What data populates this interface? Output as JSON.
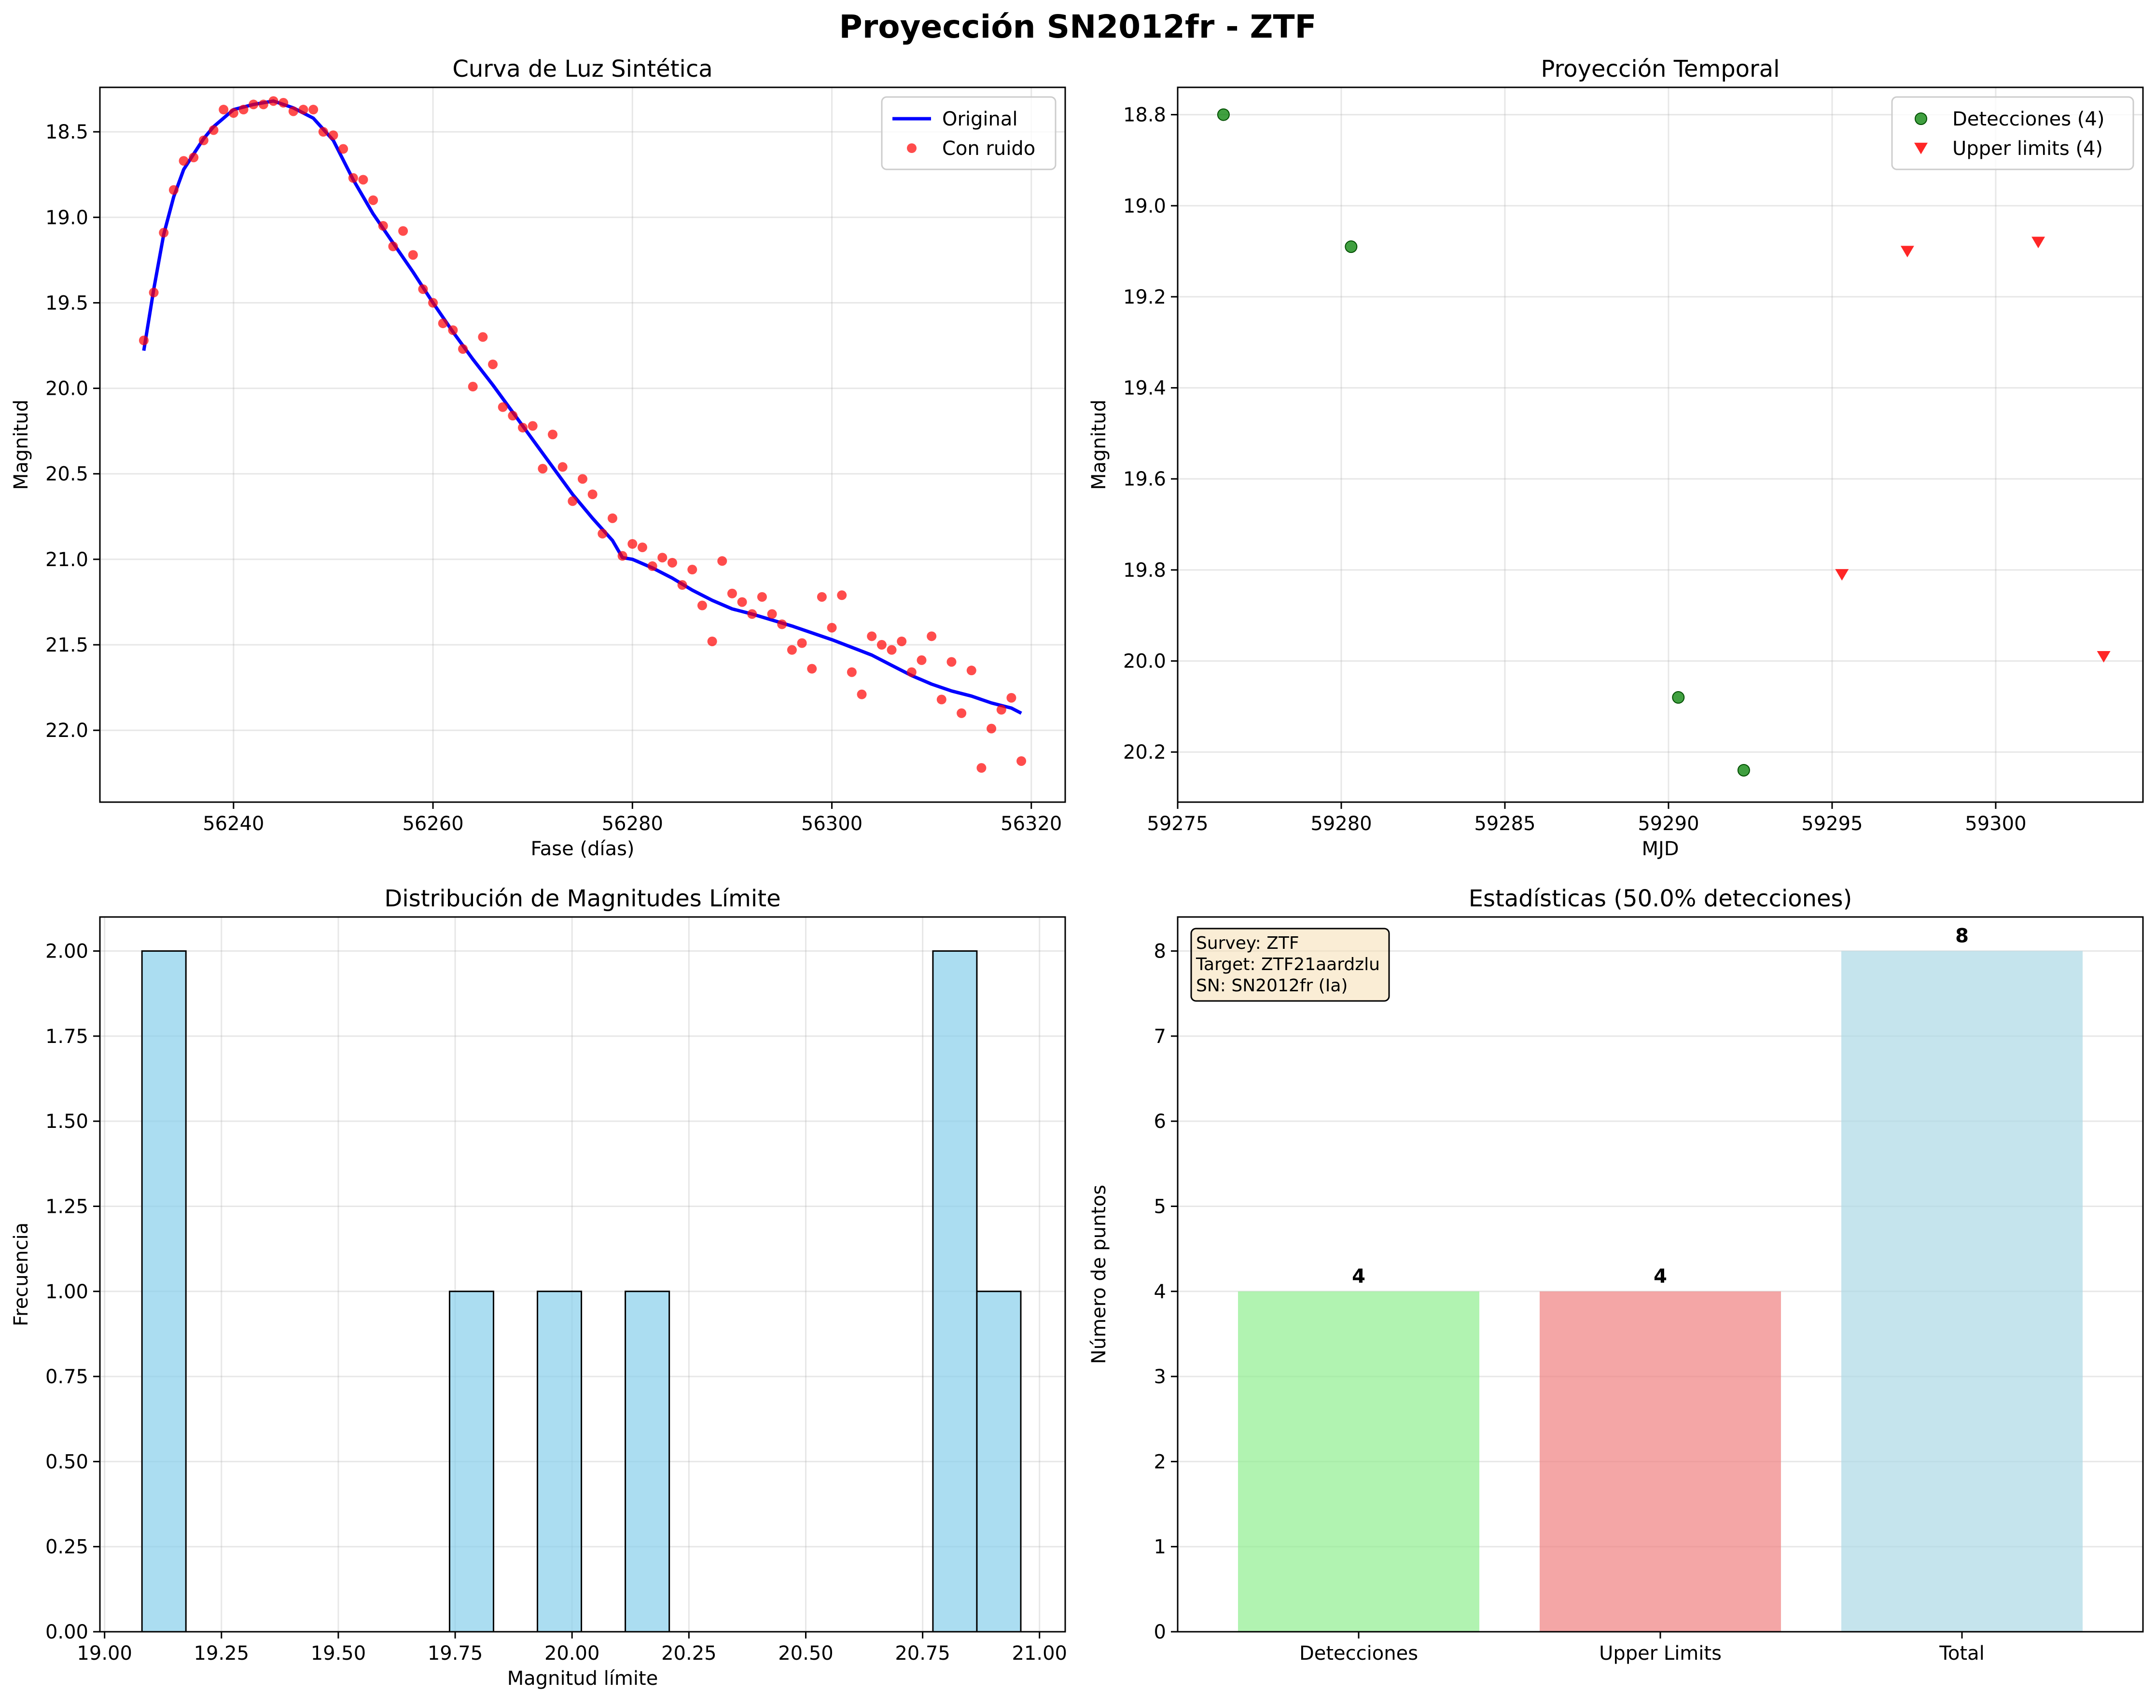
{
  "suptitle": "Proyección SN2012fr - ZTF",
  "chart_data": [
    {
      "type": "line",
      "title": "Curva de Luz Sintética",
      "xlabel": "Fase (días)",
      "ylabel": "Magnitud",
      "xlim": [
        56226.6,
        56323.4
      ],
      "ylim": [
        22.42,
        18.24
      ],
      "y_inverted": true,
      "xticks": [
        56240,
        56260,
        56280,
        56300,
        56320
      ],
      "yticks": [
        18.5,
        19.0,
        19.5,
        20.0,
        20.5,
        21.0,
        21.5,
        22.0
      ],
      "xtick_labels": [
        "56240",
        "56260",
        "56280",
        "56300",
        "56320"
      ],
      "ytick_labels": [
        "18.5",
        "19.0",
        "19.5",
        "20.0",
        "20.5",
        "21.0",
        "21.5",
        "22.0"
      ],
      "grid": true,
      "legend": {
        "position": "top-right",
        "entries": [
          "Original",
          "Con ruido"
        ]
      },
      "series": [
        {
          "name": "Original",
          "kind": "line",
          "color": "#0000ff",
          "x": [
            56231,
            56232,
            56233,
            56234,
            56235,
            56236,
            56237,
            56238,
            56239,
            56240,
            56242,
            56244,
            56246,
            56248,
            56250,
            56252,
            56254,
            56256,
            56258,
            56260,
            56262,
            56264,
            56266,
            56268,
            56270,
            56272,
            56274,
            56276,
            56278,
            56279,
            56280,
            56282,
            56284,
            56286,
            56288,
            56290,
            56292,
            56296,
            56300,
            56304,
            56306,
            56308,
            56310,
            56312,
            56314,
            56316,
            56318,
            56319
          ],
          "y": [
            19.78,
            19.42,
            19.1,
            18.88,
            18.72,
            18.63,
            18.54,
            18.47,
            18.42,
            18.37,
            18.34,
            18.32,
            18.36,
            18.42,
            18.55,
            18.78,
            18.98,
            19.15,
            19.32,
            19.5,
            19.67,
            19.83,
            19.98,
            20.14,
            20.3,
            20.46,
            20.62,
            20.76,
            20.89,
            20.99,
            21.0,
            21.05,
            21.11,
            21.18,
            21.24,
            21.29,
            21.32,
            21.39,
            21.47,
            21.56,
            21.62,
            21.68,
            21.73,
            21.77,
            21.8,
            21.84,
            21.87,
            21.9
          ]
        },
        {
          "name": "Con ruido",
          "kind": "scatter",
          "color": "#ff0000",
          "x": [
            56231,
            56232,
            56233,
            56234,
            56235,
            56236,
            56237,
            56238,
            56239,
            56240,
            56241,
            56242,
            56243,
            56244,
            56245,
            56246,
            56247,
            56248,
            56249,
            56250,
            56251,
            56252,
            56253,
            56254,
            56255,
            56256,
            56257,
            56258,
            56259,
            56260,
            56261,
            56262,
            56263,
            56264,
            56265,
            56266,
            56267,
            56268,
            56269,
            56270,
            56271,
            56272,
            56273,
            56274,
            56275,
            56276,
            56277,
            56278,
            56279,
            56280,
            56281,
            56282,
            56283,
            56284,
            56285,
            56286,
            56287,
            56288,
            56289,
            56290,
            56291,
            56292,
            56293,
            56294,
            56295,
            56296,
            56297,
            56298,
            56299,
            56300,
            56301,
            56302,
            56303,
            56304,
            56305,
            56306,
            56307,
            56308,
            56309,
            56310,
            56311,
            56312,
            56313,
            56314,
            56315,
            56316,
            56317,
            56318,
            56319
          ],
          "y": [
            19.72,
            19.44,
            19.09,
            18.84,
            18.67,
            18.65,
            18.55,
            18.49,
            18.37,
            18.39,
            18.37,
            18.34,
            18.34,
            18.32,
            18.33,
            18.38,
            18.37,
            18.37,
            18.5,
            18.52,
            18.6,
            18.77,
            18.78,
            18.9,
            19.05,
            19.17,
            19.08,
            19.22,
            19.42,
            19.5,
            19.62,
            19.66,
            19.77,
            19.99,
            19.7,
            19.86,
            20.11,
            20.16,
            20.23,
            20.22,
            20.47,
            20.27,
            20.46,
            20.66,
            20.53,
            20.62,
            20.85,
            20.76,
            20.98,
            20.91,
            20.93,
            21.04,
            20.99,
            21.02,
            21.15,
            21.06,
            21.27,
            21.48,
            21.01,
            21.2,
            21.25,
            21.32,
            21.22,
            21.32,
            21.38,
            21.53,
            21.49,
            21.64,
            21.22,
            21.4,
            21.21,
            21.66,
            21.79,
            21.45,
            21.5,
            21.53,
            21.48,
            21.66,
            21.59,
            21.45,
            21.82,
            21.6,
            21.9,
            21.65,
            22.22,
            21.99,
            21.88,
            21.81,
            22.18
          ]
        }
      ]
    },
    {
      "type": "scatter",
      "title": "Proyección Temporal",
      "xlabel": "MJD",
      "ylabel": "Magnitud",
      "xlim": [
        59275,
        59304.5
      ],
      "ylim": [
        20.31,
        18.74
      ],
      "y_inverted": true,
      "xticks": [
        59275,
        59280,
        59285,
        59290,
        59295,
        59300
      ],
      "yticks": [
        18.8,
        19.0,
        19.2,
        19.4,
        19.6,
        19.8,
        20.0,
        20.2
      ],
      "xtick_labels": [
        "59275",
        "59280",
        "59285",
        "59290",
        "59295",
        "59300"
      ],
      "ytick_labels": [
        "18.8",
        "19.0",
        "19.2",
        "19.4",
        "19.6",
        "19.8",
        "20.0",
        "20.2"
      ],
      "grid": true,
      "legend": {
        "position": "top-right",
        "entries": [
          "Detecciones (4)",
          "Upper limits (4)"
        ]
      },
      "series": [
        {
          "name": "Detecciones (4)",
          "marker": "circle",
          "color": "#008000",
          "x": [
            59276.4,
            59280.3,
            59290.3,
            59292.3
          ],
          "y": [
            18.8,
            19.09,
            20.08,
            20.24
          ]
        },
        {
          "name": "Upper limits (4)",
          "marker": "triangle-down",
          "color": "#ff0000",
          "x": [
            59295.3,
            59297.3,
            59301.3,
            59303.3
          ],
          "y": [
            19.81,
            19.1,
            19.08,
            19.99
          ]
        }
      ]
    },
    {
      "type": "bar",
      "subtype": "histogram",
      "title": "Distribución de Magnitudes Límite",
      "xlabel": "Magnitud límite",
      "ylabel": "Frecuencia",
      "xlim": [
        18.99,
        21.055
      ],
      "ylim": [
        0,
        2.1
      ],
      "xticks": [
        19.0,
        19.25,
        19.5,
        19.75,
        20.0,
        20.25,
        20.5,
        20.75,
        21.0
      ],
      "yticks": [
        0.0,
        0.25,
        0.5,
        0.75,
        1.0,
        1.25,
        1.5,
        1.75,
        2.0
      ],
      "xtick_labels": [
        "19.00",
        "19.25",
        "19.50",
        "19.75",
        "20.00",
        "20.25",
        "20.50",
        "20.75",
        "21.00"
      ],
      "ytick_labels": [
        "0.00",
        "0.25",
        "0.50",
        "0.75",
        "1.00",
        "1.25",
        "1.50",
        "1.75",
        "2.00"
      ],
      "grid": true,
      "bar_color": "#87ceeb",
      "bins": [
        {
          "from": 19.08,
          "to": 19.174,
          "count": 2
        },
        {
          "from": 19.738,
          "to": 19.832,
          "count": 1
        },
        {
          "from": 19.926,
          "to": 20.02,
          "count": 1
        },
        {
          "from": 20.114,
          "to": 20.208,
          "count": 1
        },
        {
          "from": 20.772,
          "to": 20.866,
          "count": 2
        },
        {
          "from": 20.866,
          "to": 20.96,
          "count": 1
        }
      ]
    },
    {
      "type": "bar",
      "title": "Estadísticas (50.0% detecciones)",
      "xlabel": "",
      "ylabel": "Número de puntos",
      "ylim": [
        0,
        8.4
      ],
      "yticks": [
        0,
        1,
        2,
        3,
        4,
        5,
        6,
        7,
        8
      ],
      "ytick_labels": [
        "0",
        "1",
        "2",
        "3",
        "4",
        "5",
        "6",
        "7",
        "8"
      ],
      "grid": true,
      "categories": [
        "Detecciones",
        "Upper Limits",
        "Total"
      ],
      "values": [
        4,
        4,
        8
      ],
      "value_labels": [
        "4",
        "4",
        "8"
      ],
      "colors": [
        "#90ee90",
        "#f08080",
        "#add8e6"
      ],
      "info_box": {
        "position": "top-left",
        "lines": [
          "Survey: ZTF",
          "Target: ZTF21aardzlu",
          "SN: SN2012fr (Ia)"
        ]
      }
    }
  ]
}
